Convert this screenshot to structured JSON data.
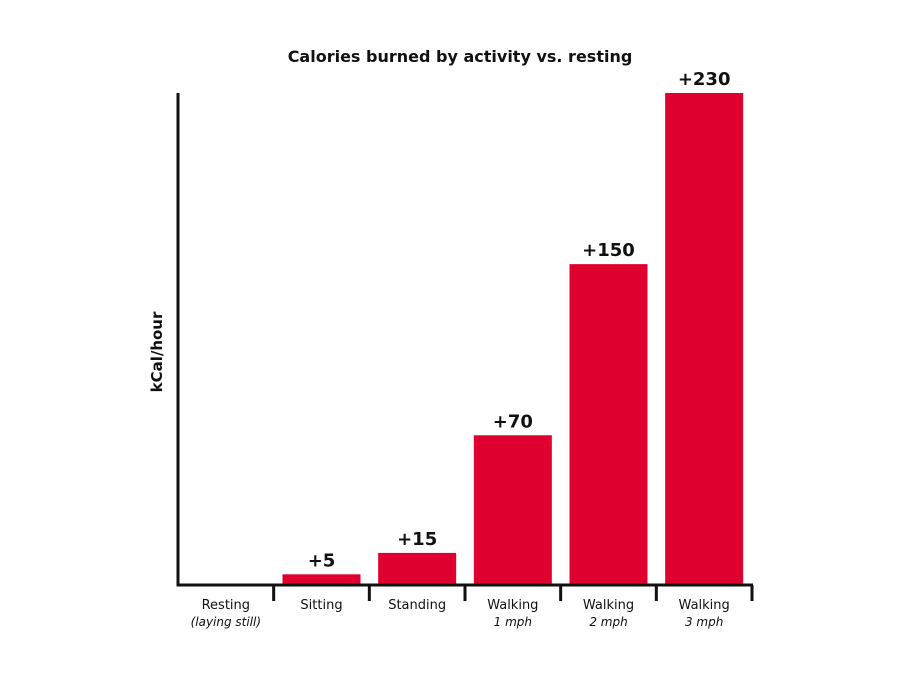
{
  "chart_data": {
    "type": "bar",
    "title": "Calories burned by activity vs. resting",
    "ylabel": "kCal/hour",
    "xlabel": "",
    "ylim": [
      0,
      230
    ],
    "grid": false,
    "bar_color": "#E0002F",
    "categories": [
      {
        "label": "Resting",
        "sublabel": "(laying still)"
      },
      {
        "label": "Sitting",
        "sublabel": ""
      },
      {
        "label": "Standing",
        "sublabel": ""
      },
      {
        "label": "Walking",
        "sublabel": "1 mph"
      },
      {
        "label": "Walking",
        "sublabel": "2 mph"
      },
      {
        "label": "Walking",
        "sublabel": "3 mph"
      }
    ],
    "values": [
      0,
      5,
      15,
      70,
      150,
      230
    ],
    "value_labels": [
      "",
      "+5",
      "+15",
      "+70",
      "+150",
      "+230"
    ]
  }
}
